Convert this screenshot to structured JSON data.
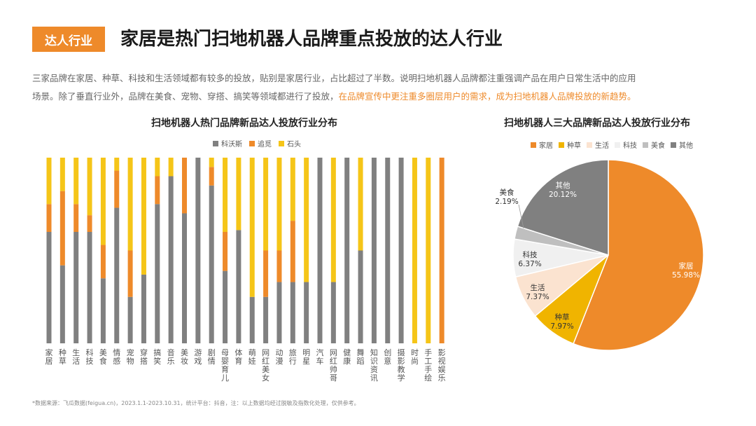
{
  "header": {
    "tag": "达人行业",
    "title": "家居是热门扫地机器人品牌重点投放的达人行业"
  },
  "description": {
    "line1": "三家品牌在家居、种草、科技和生活领域都有较多的投放，贴别是家居行业，占比超过了半数。说明扫地机器人品牌都注重强调产品在用户日常生活中的应用",
    "line2_plain": "场景。除了垂直行业外，品牌在美食、宠物、穿搭、搞笑等领域都进行了投放，",
    "line2_highlight": "在品牌宣传中更注重多圈层用户的需求，成为扫地机器人品牌投放的新趋势。"
  },
  "footnote": "*数据来源：飞瓜数据(feigua.cn)，2023.1.1-2023.10.31，统计平台：抖音，注：以上数据均经过脱敏及指数化处理，仅供参考。",
  "colors": {
    "accent": "#ee8a2a"
  },
  "chart_data": [
    {
      "type": "bar",
      "stacked": "100%",
      "title": "扫地机器人热门品牌新品达人投放行业分布",
      "categories": [
        "家居",
        "种草",
        "生活",
        "科技",
        "美食",
        "情感",
        "宠物",
        "穿搭",
        "搞笑",
        "音乐",
        "美妆",
        "游戏",
        "剧情",
        "母婴育儿",
        "体育",
        "萌娃",
        "网红美女",
        "动漫",
        "旅行",
        "明星",
        "汽车",
        "网红帅哥",
        "健康",
        "舞蹈",
        "知识资讯",
        "创意",
        "摄影教学",
        "时尚",
        "手工手绘",
        "影视娱乐"
      ],
      "series": [
        {
          "name": "科沃斯",
          "color": "#808080",
          "values": [
            60,
            42,
            60,
            60,
            35,
            73,
            25,
            37,
            75,
            90,
            70,
            100,
            85,
            39,
            61,
            25,
            25,
            33,
            33,
            33,
            100,
            33,
            100,
            50,
            100,
            100,
            100,
            0,
            0,
            0
          ]
        },
        {
          "name": "追觅",
          "color": "#ee8a2a",
          "values": [
            15,
            40,
            15,
            9,
            18,
            20,
            25,
            0,
            15,
            0,
            30,
            0,
            10,
            21,
            0,
            0,
            25,
            17,
            33,
            0,
            0,
            0,
            0,
            0,
            0,
            0,
            0,
            0,
            0,
            100
          ]
        },
        {
          "name": "石头",
          "color": "#f5c518",
          "values": [
            25,
            18,
            25,
            31,
            47,
            7,
            50,
            63,
            10,
            10,
            0,
            0,
            5,
            40,
            39,
            75,
            50,
            50,
            34,
            67,
            0,
            67,
            0,
            50,
            0,
            0,
            0,
            100,
            100,
            0
          ]
        }
      ],
      "ylim": [
        0,
        100
      ],
      "legend": "top-right"
    },
    {
      "type": "pie",
      "title": "扫地机器人三大品牌新品达人投放行业分布",
      "slices": [
        {
          "label": "家居",
          "value": 55.98,
          "display": "55.98%",
          "color": "#ee8a2a"
        },
        {
          "label": "种草",
          "value": 7.97,
          "display": "7.97%",
          "color": "#f0b400"
        },
        {
          "label": "生活",
          "value": 7.37,
          "display": "7.37%",
          "color": "#fbe3d0"
        },
        {
          "label": "科技",
          "value": 6.37,
          "display": "6.37%",
          "color": "#f0f0f0"
        },
        {
          "label": "美食",
          "value": 2.19,
          "display": "2.19%",
          "color": "#bfbfbf"
        },
        {
          "label": "其他",
          "value": 20.12,
          "display": "20.12%",
          "color": "#808080"
        }
      ],
      "legend": "top"
    }
  ]
}
